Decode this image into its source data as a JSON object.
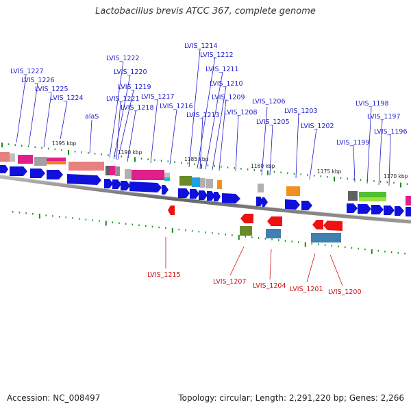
{
  "title": "Lactobacillus brevis ATCC 367, complete genome",
  "footer": {
    "accession": "Accession: NC_008497",
    "topology": "Topology: circular; Length: 2,291,220 bp; Genes: 2,266"
  },
  "colors": {
    "forward_gene": "#1010dd",
    "reverse_gene": "#ee1111",
    "forward_label": "#1a1acc",
    "reverse_label": "#cc1111",
    "backbone": "#777777",
    "tick": "#1a8a1a"
  },
  "kbp_marks": [
    "1195 kbp",
    "1190 kbp",
    "1185 kbp",
    "1180 kbp",
    "1175 kbp",
    "1170 kbp"
  ],
  "forward_labels": [
    "LVIS_1227",
    "LVIS_1226",
    "LVIS_1225",
    "LVIS_1224",
    "alaS",
    "LVIS_1222",
    "LVIS_1220",
    "LVIS_1219",
    "LVIS_1221",
    "LVIS_1218",
    "LVIS_1217",
    "LVIS_1216",
    "LVIS_1214",
    "LVIS_1212",
    "LVIS_1211",
    "LVIS_1210",
    "LVIS_1209",
    "LVIS_1213",
    "LVIS_1208",
    "LVIS_1206",
    "LVIS_1205",
    "LVIS_1203",
    "LVIS_1202",
    "LVIS_1199",
    "LVIS_1198",
    "LVIS_1197",
    "LVIS_1196"
  ],
  "reverse_labels": [
    "LVIS_1215",
    "LVIS_1207",
    "LVIS_1204",
    "LVIS_1201",
    "LVIS_1200"
  ]
}
